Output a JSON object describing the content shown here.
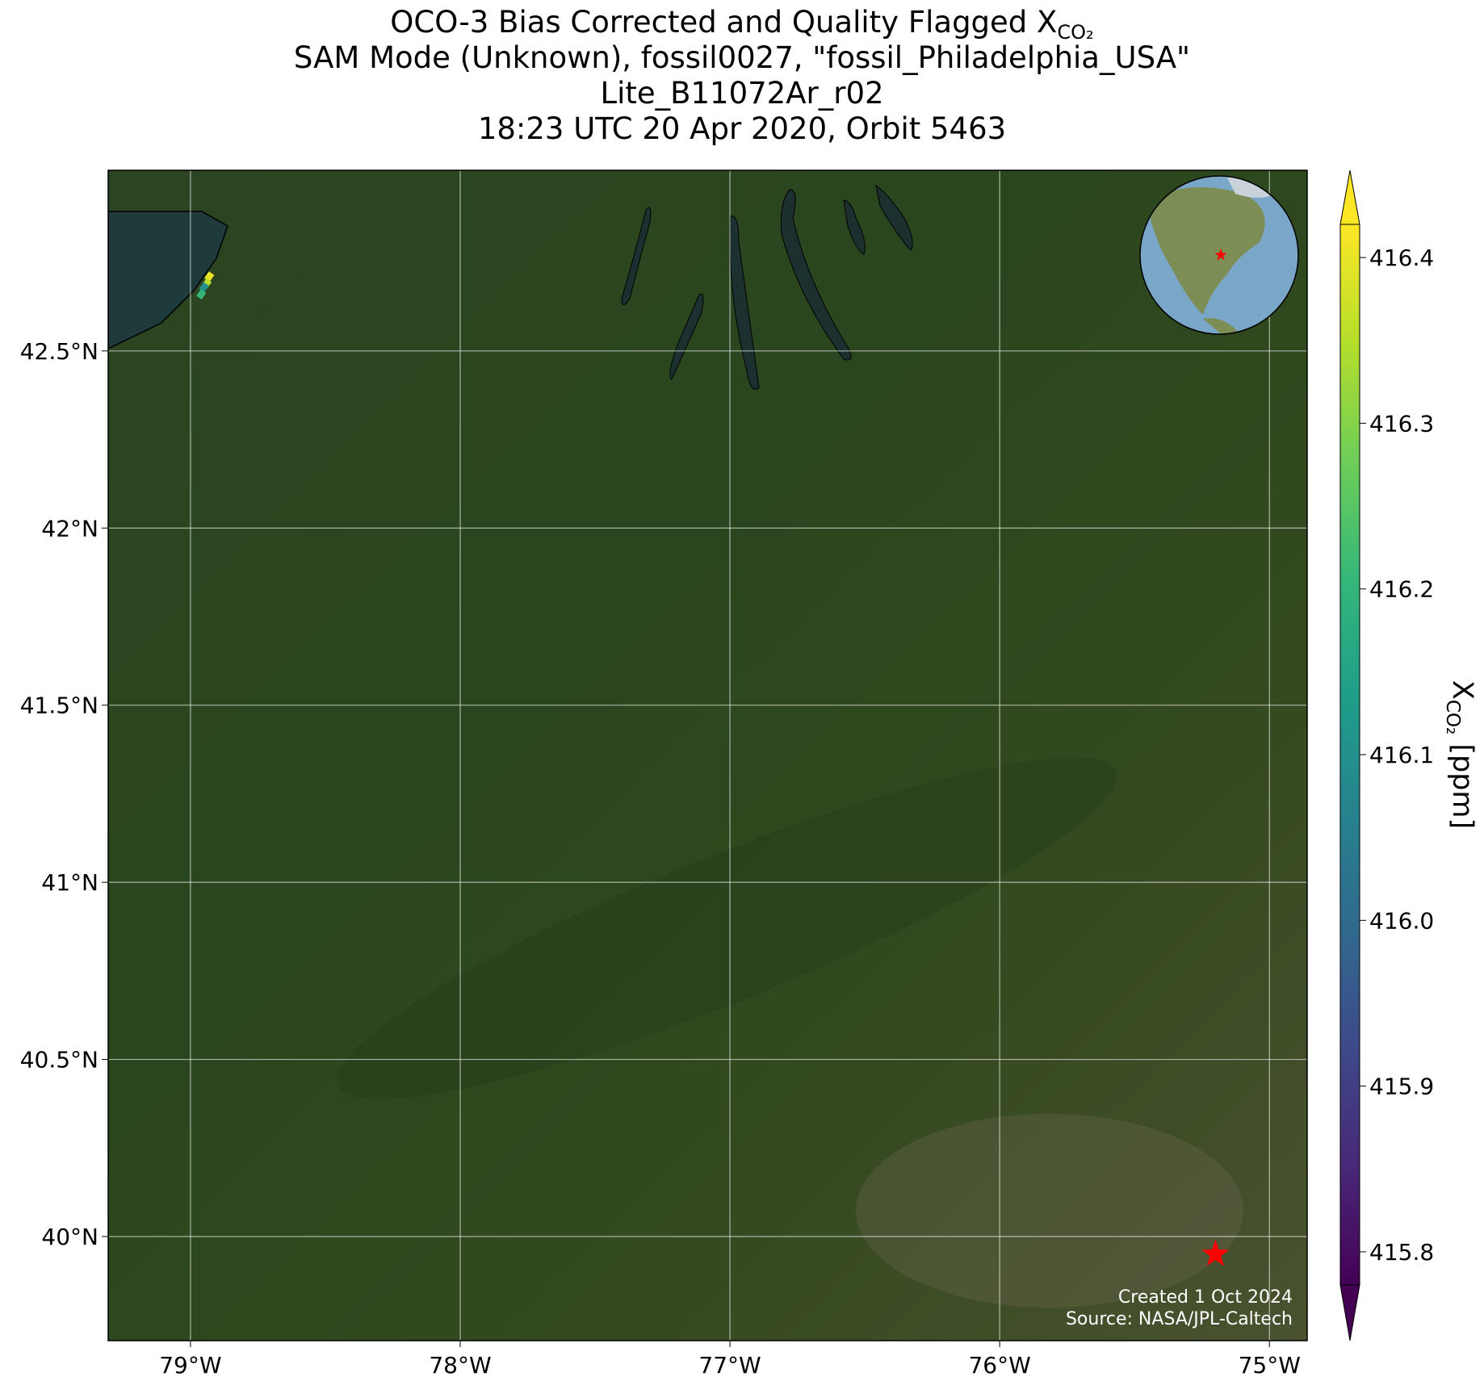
{
  "chart_data": {
    "type": "map-scatter",
    "title": [
      {
        "text": "OCO-3 Bias Corrected and Quality Flagged X",
        "sub": "CO₂"
      },
      {
        "text": "SAM Mode (Unknown), fossil0027, \"fossil_Philadelphia_USA\""
      },
      {
        "text": "Lite_B11072Ar_r02"
      },
      {
        "text": "18:23 UTC 20 Apr 2020, Orbit 5463"
      }
    ],
    "x": [
      -78.93,
      -78.94,
      -78.95,
      -78.96
    ],
    "y": [
      42.71,
      42.69,
      42.68,
      42.66
    ],
    "values": [
      416.4,
      416.35,
      416.1,
      416.2
    ],
    "site": {
      "lon": -75.2,
      "lat": 39.95,
      "color": "#ff0000"
    },
    "xlim": [
      -79.305,
      -74.86
    ],
    "ylim": [
      39.706,
      43.01
    ],
    "xticks": [
      {
        "value": -79,
        "label": "79°W"
      },
      {
        "value": -78,
        "label": "78°W"
      },
      {
        "value": -77,
        "label": "77°W"
      },
      {
        "value": -76,
        "label": "76°W"
      },
      {
        "value": -75,
        "label": "75°W"
      }
    ],
    "yticks": [
      {
        "value": 40,
        "label": "40°N"
      },
      {
        "value": 40.5,
        "label": "40.5°N"
      },
      {
        "value": 41,
        "label": "41°N"
      },
      {
        "value": 41.5,
        "label": "41.5°N"
      },
      {
        "value": 42,
        "label": "42°N"
      },
      {
        "value": 42.5,
        "label": "42.5°N"
      }
    ],
    "grid": true,
    "colorbar": {
      "label": {
        "text": "X",
        "sub": "CO₂",
        "unit": " [ppm]"
      },
      "clim": [
        415.78,
        416.42
      ],
      "ticks": [
        415.8,
        415.9,
        {
          "value": 416,
          "label": "416.0"
        },
        416.1,
        416.2,
        416.3,
        416.4
      ],
      "colormap": [
        "#440154",
        "#482878",
        "#3e4989",
        "#31688e",
        "#26828e",
        "#1f9e89",
        "#35b779",
        "#6ece58",
        "#b5de2b",
        "#fde725"
      ],
      "extend": "both"
    },
    "annotation": [
      "Created 1 Oct 2024",
      "Source: NASA/JPL-Caltech"
    ]
  }
}
